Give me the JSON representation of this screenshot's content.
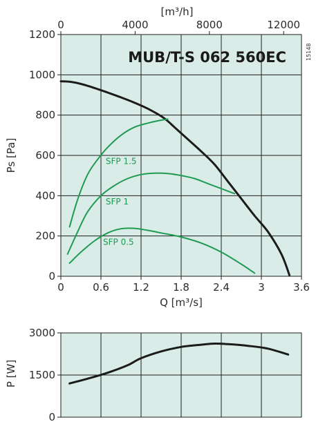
{
  "colors": {
    "plot_bg": "#d9ece7",
    "grid": "#1e1e1e",
    "fan_curve": "#1b1b1b",
    "sfp_curve": "#1e9a53",
    "text": "#2b2b2b"
  },
  "chart_data": [
    {
      "type": "line",
      "title": "MUB/T-S 062 560EC",
      "code": "15148",
      "xlabel": "Q [m³/s]",
      "ylabel": "Ps [Pa]",
      "x2label": "[m³/h]",
      "xlim": [
        0,
        3.6
      ],
      "ylim": [
        0,
        1200
      ],
      "x2lim": [
        0,
        12960
      ],
      "xticks": [
        0,
        0.6,
        1.2,
        1.8,
        2.4,
        3,
        3.6
      ],
      "xtick_labels": [
        "0",
        "0.6",
        "1.2",
        "1.8",
        "2.4",
        "3",
        "3.6"
      ],
      "yticks": [
        0,
        200,
        400,
        600,
        800,
        1000,
        1200
      ],
      "ytick_labels": [
        "0",
        "200",
        "400",
        "600",
        "800",
        "1000",
        "1200"
      ],
      "x2ticks": [
        0,
        4000,
        8000,
        12000
      ],
      "x2tick_labels": [
        "0",
        "4000",
        "8000",
        "12000"
      ],
      "grid": true,
      "series": [
        {
          "role": "fan",
          "x": [
            0,
            0.15,
            0.3,
            0.5,
            0.7,
            0.9,
            1.1,
            1.3,
            1.5,
            1.6,
            1.7,
            1.9,
            2.1,
            2.3,
            2.5,
            2.7,
            2.9,
            3.1,
            3.3,
            3.42
          ],
          "y": [
            968,
            965,
            955,
            935,
            912,
            888,
            862,
            832,
            795,
            770,
            740,
            680,
            620,
            555,
            470,
            385,
            300,
            220,
            110,
            5
          ]
        },
        {
          "role": "sfp",
          "name": "SFP 1.5",
          "x": [
            0.13,
            0.25,
            0.4,
            0.55,
            0.7,
            0.9,
            1.1,
            1.3,
            1.5,
            1.6
          ],
          "y": [
            245,
            380,
            505,
            580,
            640,
            700,
            740,
            760,
            775,
            780
          ]
        },
        {
          "role": "sfp",
          "name": "SFP 1",
          "x": [
            0.1,
            0.25,
            0.4,
            0.6,
            0.8,
            1.0,
            1.2,
            1.4,
            1.6,
            1.8,
            2.0,
            2.2,
            2.4,
            2.6
          ],
          "y": [
            110,
            220,
            320,
            400,
            450,
            485,
            505,
            512,
            510,
            500,
            485,
            460,
            435,
            410
          ]
        },
        {
          "role": "sfp",
          "name": "SFP 0.5",
          "x": [
            0.13,
            0.3,
            0.5,
            0.7,
            0.9,
            1.1,
            1.3,
            1.5,
            1.8,
            2.1,
            2.4,
            2.7,
            2.9
          ],
          "y": [
            65,
            120,
            175,
            215,
            236,
            238,
            228,
            215,
            195,
            165,
            120,
            60,
            15
          ]
        }
      ],
      "sfp_labels": [
        {
          "text": "SFP 1.5",
          "x": 0.64,
          "y": 550
        },
        {
          "text": "SFP 1",
          "x": 0.64,
          "y": 350
        },
        {
          "text": "SFP 0.5",
          "x": 0.6,
          "y": 150
        }
      ]
    },
    {
      "type": "line",
      "ylabel": "P [W]",
      "xlim": [
        0,
        3.6
      ],
      "ylim": [
        0,
        3000
      ],
      "xticks": [
        0,
        0.6,
        1.2,
        1.8,
        2.4,
        3,
        3.6
      ],
      "yticks": [
        0,
        1500,
        3000
      ],
      "ytick_labels": [
        "0",
        "1500",
        "3000"
      ],
      "grid": true,
      "series": [
        {
          "role": "power",
          "x": [
            0.13,
            0.4,
            0.7,
            1.0,
            1.2,
            1.5,
            1.8,
            2.1,
            2.3,
            2.5,
            2.8,
            3.1,
            3.4
          ],
          "y": [
            1200,
            1370,
            1580,
            1850,
            2100,
            2340,
            2500,
            2580,
            2620,
            2600,
            2540,
            2440,
            2230
          ]
        }
      ]
    }
  ]
}
